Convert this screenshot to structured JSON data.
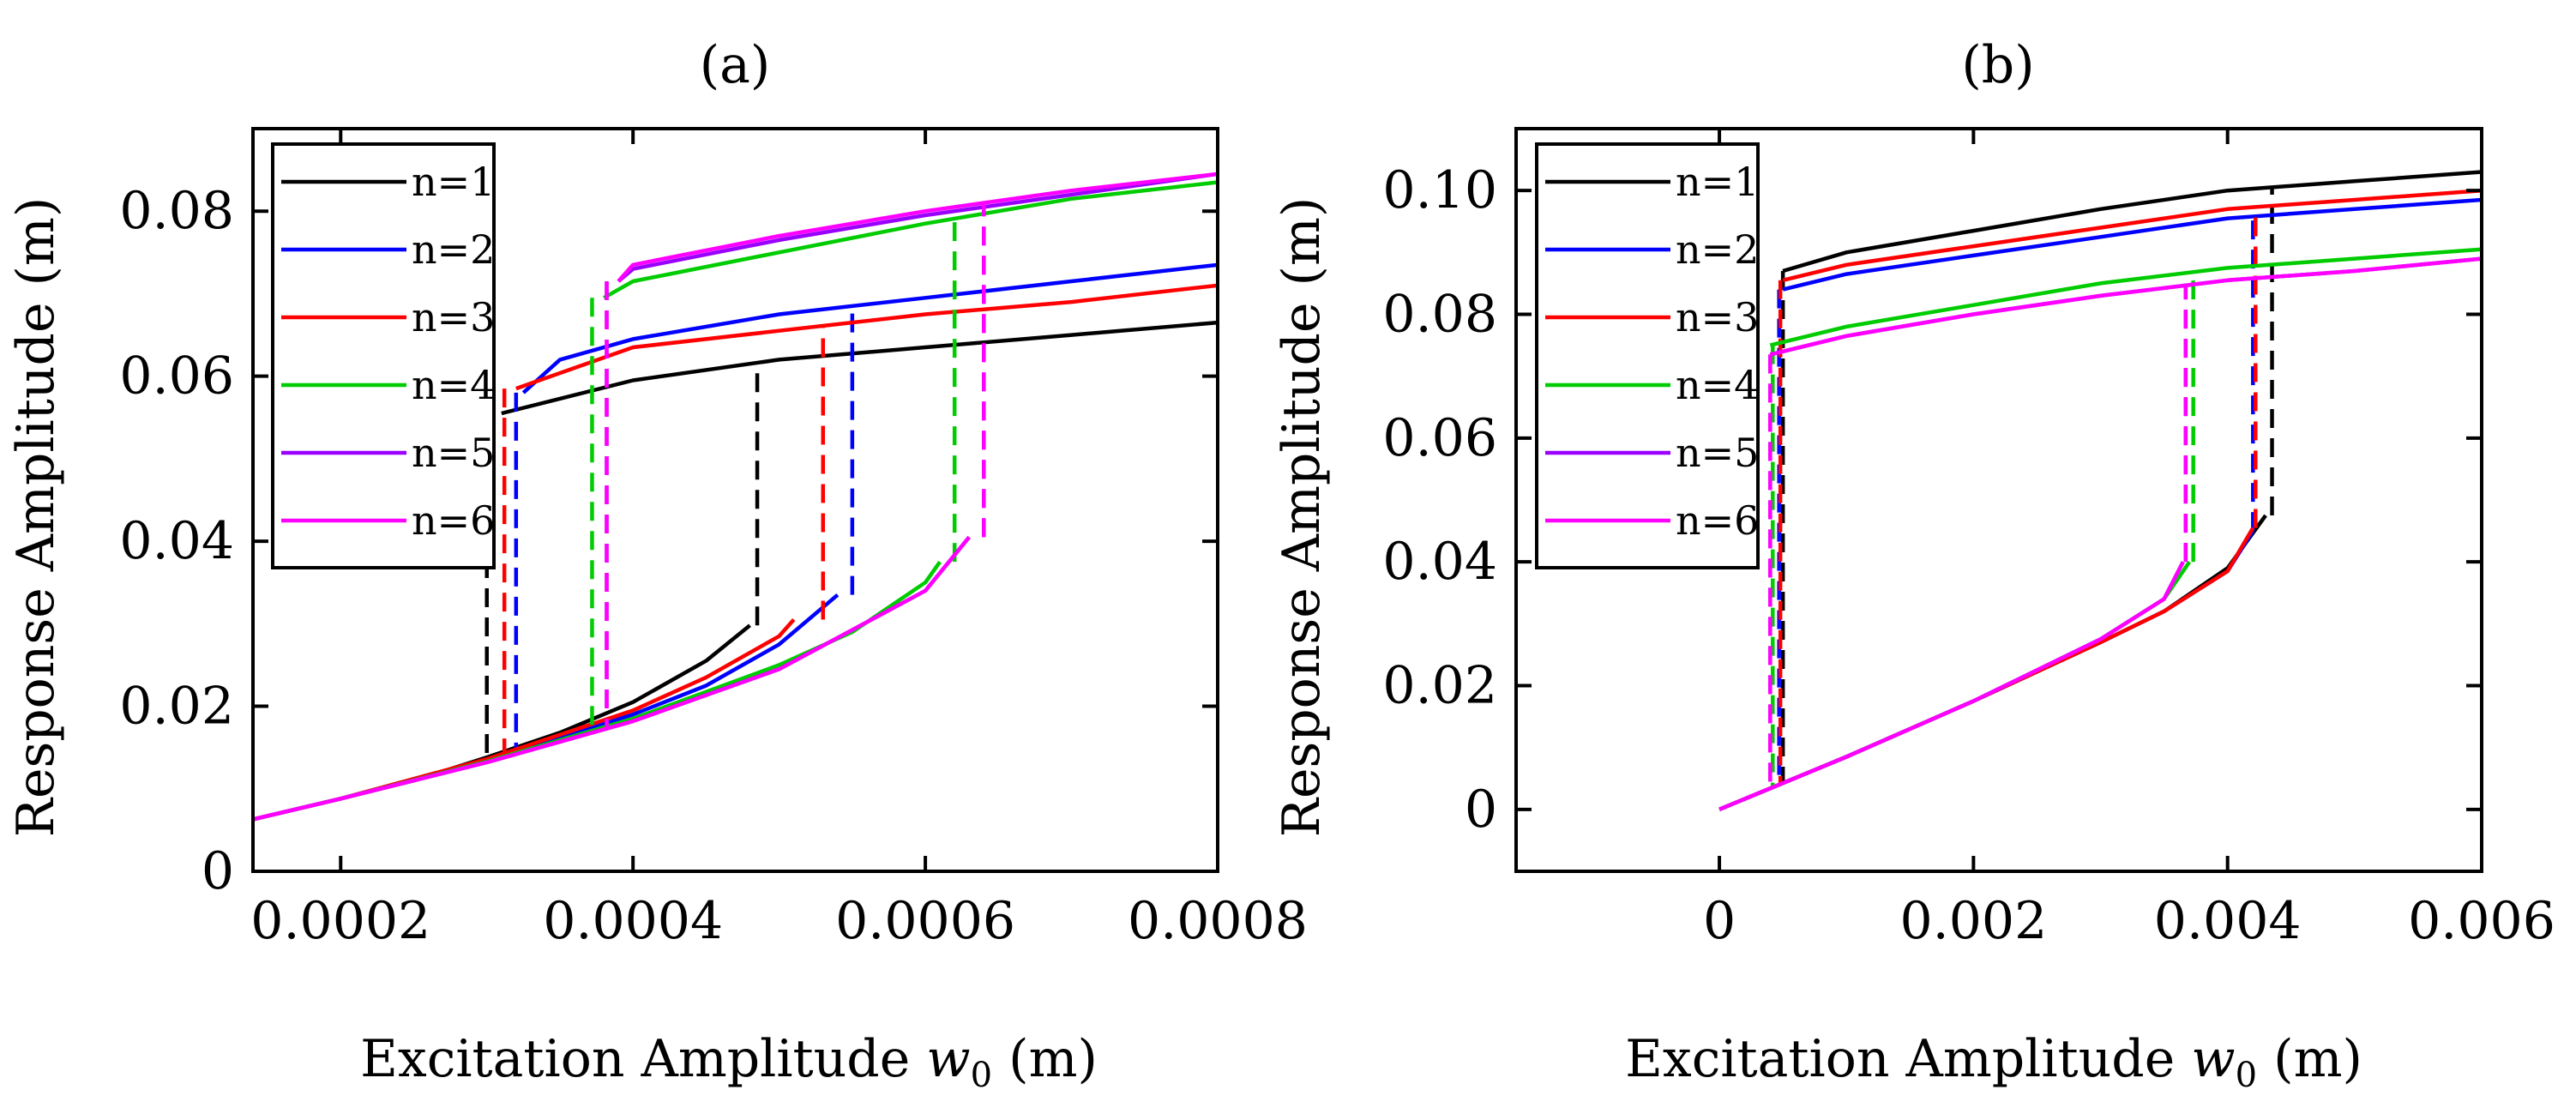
{
  "chart_data": [
    {
      "type": "line",
      "panel_label": "(a)",
      "xlabel": "Excitation Amplitude w0 (m)",
      "xlabel_main": "Excitation Amplitude ",
      "xlabel_var": "w",
      "xlabel_sub": "0",
      "xlabel_unit": " (m)",
      "ylabel": "Response Amplitude (m)",
      "xlim": [
        0.00014,
        0.0008
      ],
      "ylim": [
        0,
        0.09
      ],
      "xticks": [
        0.0002,
        0.0004,
        0.0006,
        0.0008
      ],
      "xtick_labels": [
        "0.0002",
        "0.0004",
        "0.0006",
        "0.0008"
      ],
      "yticks": [
        0,
        0.02,
        0.04,
        0.06,
        0.08
      ],
      "ytick_labels": [
        "0",
        "0.02",
        "0.04",
        "0.06",
        "0.08"
      ],
      "legend_position": "top-left",
      "series": [
        {
          "name": "n=1",
          "color": "#000000",
          "lower": [
            [
              0.00014,
              0.0063
            ],
            [
              0.0002,
              0.0088
            ],
            [
              0.00025,
              0.011
            ],
            [
              0.0003,
              0.0138
            ],
            [
              0.00035,
              0.0168
            ],
            [
              0.0004,
              0.0205
            ],
            [
              0.00045,
              0.0255
            ],
            [
              0.00048,
              0.0298
            ]
          ],
          "upper": [
            [
              0.00031,
              0.0555
            ],
            [
              0.0004,
              0.0595
            ],
            [
              0.0005,
              0.062
            ],
            [
              0.0006,
              0.0635
            ],
            [
              0.0007,
              0.065
            ],
            [
              0.0008,
              0.0665
            ]
          ],
          "jump_up_x": 0.000485,
          "jump_down_x": 0.0003
        },
        {
          "name": "n=2",
          "color": "#0000ff",
          "lower": [
            [
              0.00014,
              0.0063
            ],
            [
              0.0002,
              0.0088
            ],
            [
              0.0003,
              0.0134
            ],
            [
              0.0004,
              0.019
            ],
            [
              0.00045,
              0.0225
            ],
            [
              0.0005,
              0.0275
            ],
            [
              0.00054,
              0.0335
            ]
          ],
          "upper": [
            [
              0.000325,
              0.058
            ],
            [
              0.00035,
              0.062
            ],
            [
              0.0004,
              0.0645
            ],
            [
              0.0005,
              0.0675
            ],
            [
              0.0006,
              0.0695
            ],
            [
              0.0007,
              0.0715
            ],
            [
              0.0008,
              0.0735
            ]
          ],
          "jump_up_x": 0.00055,
          "jump_down_x": 0.00032
        },
        {
          "name": "n=3",
          "color": "#ff0000",
          "lower": [
            [
              0.00014,
              0.0063
            ],
            [
              0.0002,
              0.0088
            ],
            [
              0.0003,
              0.0136
            ],
            [
              0.0004,
              0.0195
            ],
            [
              0.00045,
              0.0235
            ],
            [
              0.0005,
              0.0285
            ],
            [
              0.00051,
              0.0305
            ]
          ],
          "upper": [
            [
              0.00032,
              0.0585
            ],
            [
              0.0004,
              0.0635
            ],
            [
              0.0005,
              0.0655
            ],
            [
              0.0006,
              0.0675
            ],
            [
              0.0007,
              0.069
            ],
            [
              0.0008,
              0.071
            ]
          ],
          "jump_up_x": 0.00053,
          "jump_down_x": 0.000312
        },
        {
          "name": "n=4",
          "color": "#00cc00",
          "lower": [
            [
              0.00014,
              0.0063
            ],
            [
              0.0002,
              0.0088
            ],
            [
              0.0003,
              0.0133
            ],
            [
              0.0004,
              0.0185
            ],
            [
              0.0005,
              0.025
            ],
            [
              0.00055,
              0.029
            ],
            [
              0.0006,
              0.035
            ],
            [
              0.00061,
              0.0375
            ]
          ],
          "upper": [
            [
              0.00038,
              0.0695
            ],
            [
              0.0004,
              0.0715
            ],
            [
              0.0005,
              0.075
            ],
            [
              0.0006,
              0.0785
            ],
            [
              0.0007,
              0.0815
            ],
            [
              0.0008,
              0.0835
            ]
          ],
          "jump_up_x": 0.00062,
          "jump_down_x": 0.000372
        },
        {
          "name": "n=5",
          "color": "#9900ff",
          "lower": [
            [
              0.00014,
              0.0063
            ],
            [
              0.0002,
              0.0088
            ],
            [
              0.0003,
              0.0132
            ],
            [
              0.0004,
              0.0182
            ],
            [
              0.0005,
              0.0245
            ],
            [
              0.0006,
              0.034
            ],
            [
              0.00063,
              0.0405
            ]
          ],
          "upper": [
            [
              0.00039,
              0.0715
            ],
            [
              0.0004,
              0.073
            ],
            [
              0.0005,
              0.0765
            ],
            [
              0.0006,
              0.0795
            ],
            [
              0.0007,
              0.082
            ],
            [
              0.0008,
              0.0845
            ]
          ],
          "jump_up_x": 0.00064,
          "jump_down_x": 0.000382
        },
        {
          "name": "n=6",
          "color": "#ff00ff",
          "lower": [
            [
              0.00014,
              0.0063
            ],
            [
              0.0002,
              0.0088
            ],
            [
              0.0003,
              0.0132
            ],
            [
              0.0004,
              0.0182
            ],
            [
              0.0005,
              0.0245
            ],
            [
              0.0006,
              0.034
            ],
            [
              0.00063,
              0.0405
            ]
          ],
          "upper": [
            [
              0.00039,
              0.0715
            ],
            [
              0.0004,
              0.0735
            ],
            [
              0.0005,
              0.077
            ],
            [
              0.0006,
              0.08
            ],
            [
              0.0007,
              0.0825
            ],
            [
              0.0008,
              0.0845
            ]
          ],
          "jump_up_x": 0.00064,
          "jump_down_x": 0.000382
        }
      ]
    },
    {
      "type": "line",
      "panel_label": "(b)",
      "xlabel": "Excitation Amplitude w0 (m)",
      "xlabel_main": "Excitation Amplitude ",
      "xlabel_var": "w",
      "xlabel_sub": "0",
      "xlabel_unit": " (m)",
      "ylabel": "Response Amplitude (m)",
      "xlim": [
        -0.0016,
        0.006
      ],
      "ylim": [
        -0.01,
        0.11
      ],
      "xticks": [
        0,
        0.002,
        0.004,
        0.006
      ],
      "xtick_labels": [
        "0",
        "0.002",
        "0.004",
        "0.006"
      ],
      "yticks": [
        0,
        0.02,
        0.04,
        0.06,
        0.08,
        0.1
      ],
      "ytick_labels": [
        "0",
        "0.02",
        "0.04",
        "0.06",
        "0.08",
        "0.10"
      ],
      "legend_position": "top-left",
      "series": [
        {
          "name": "n=1",
          "color": "#000000",
          "lower": [
            [
              0,
              0
            ],
            [
              0.001,
              0.0085
            ],
            [
              0.002,
              0.0175
            ],
            [
              0.003,
              0.027
            ],
            [
              0.0035,
              0.032
            ],
            [
              0.004,
              0.039
            ],
            [
              0.0043,
              0.0475
            ]
          ],
          "upper": [
            [
              0.0005,
              0.087
            ],
            [
              0.001,
              0.09
            ],
            [
              0.002,
              0.0935
            ],
            [
              0.003,
              0.097
            ],
            [
              0.004,
              0.1
            ],
            [
              0.005,
              0.1015
            ],
            [
              0.006,
              0.103
            ]
          ],
          "jump_up_x": 0.00435,
          "jump_down_x": 0.0005
        },
        {
          "name": "n=2",
          "color": "#0000ff",
          "lower": [
            [
              0,
              0
            ],
            [
              0.001,
              0.0085
            ],
            [
              0.002,
              0.0175
            ],
            [
              0.003,
              0.027
            ],
            [
              0.0035,
              0.032
            ],
            [
              0.004,
              0.0385
            ],
            [
              0.0042,
              0.045
            ]
          ],
          "upper": [
            [
              0.0005,
              0.084
            ],
            [
              0.001,
              0.0865
            ],
            [
              0.002,
              0.0895
            ],
            [
              0.003,
              0.0925
            ],
            [
              0.004,
              0.0955
            ],
            [
              0.005,
              0.097
            ],
            [
              0.006,
              0.0985
            ]
          ],
          "jump_up_x": 0.0042,
          "jump_down_x": 0.00047
        },
        {
          "name": "n=3",
          "color": "#ff0000",
          "lower": [
            [
              0,
              0
            ],
            [
              0.001,
              0.0085
            ],
            [
              0.002,
              0.0175
            ],
            [
              0.003,
              0.027
            ],
            [
              0.0035,
              0.032
            ],
            [
              0.004,
              0.0385
            ],
            [
              0.0042,
              0.0455
            ]
          ],
          "upper": [
            [
              0.0005,
              0.0855
            ],
            [
              0.001,
              0.088
            ],
            [
              0.002,
              0.091
            ],
            [
              0.003,
              0.094
            ],
            [
              0.004,
              0.097
            ],
            [
              0.005,
              0.0985
            ],
            [
              0.006,
              0.1
            ]
          ],
          "jump_up_x": 0.00422,
          "jump_down_x": 0.00048
        },
        {
          "name": "n=4",
          "color": "#00cc00",
          "lower": [
            [
              0,
              0
            ],
            [
              0.001,
              0.0085
            ],
            [
              0.002,
              0.0175
            ],
            [
              0.003,
              0.0275
            ],
            [
              0.0035,
              0.034
            ],
            [
              0.0037,
              0.04
            ]
          ],
          "upper": [
            [
              0.0004,
              0.075
            ],
            [
              0.001,
              0.078
            ],
            [
              0.002,
              0.0815
            ],
            [
              0.003,
              0.085
            ],
            [
              0.004,
              0.0875
            ],
            [
              0.005,
              0.089
            ],
            [
              0.006,
              0.0905
            ]
          ],
          "jump_up_x": 0.00373,
          "jump_down_x": 0.00042
        },
        {
          "name": "n=5",
          "color": "#9900ff",
          "lower": [
            [
              0,
              0
            ],
            [
              0.001,
              0.0085
            ],
            [
              0.002,
              0.0175
            ],
            [
              0.003,
              0.0275
            ],
            [
              0.0035,
              0.034
            ],
            [
              0.00365,
              0.04
            ]
          ],
          "upper": [
            [
              0.0004,
              0.0735
            ],
            [
              0.001,
              0.0765
            ],
            [
              0.002,
              0.08
            ],
            [
              0.003,
              0.083
            ],
            [
              0.004,
              0.0855
            ],
            [
              0.005,
              0.087
            ],
            [
              0.006,
              0.089
            ]
          ],
          "jump_up_x": 0.00367,
          "jump_down_x": 0.0004
        },
        {
          "name": "n=6",
          "color": "#ff00ff",
          "lower": [
            [
              0,
              0
            ],
            [
              0.001,
              0.0085
            ],
            [
              0.002,
              0.0175
            ],
            [
              0.003,
              0.0275
            ],
            [
              0.0035,
              0.034
            ],
            [
              0.00365,
              0.04
            ]
          ],
          "upper": [
            [
              0.0004,
              0.0735
            ],
            [
              0.001,
              0.0765
            ],
            [
              0.002,
              0.08
            ],
            [
              0.003,
              0.083
            ],
            [
              0.004,
              0.0855
            ],
            [
              0.005,
              0.087
            ],
            [
              0.006,
              0.089
            ]
          ],
          "jump_up_x": 0.00367,
          "jump_down_x": 0.0004
        }
      ]
    }
  ]
}
